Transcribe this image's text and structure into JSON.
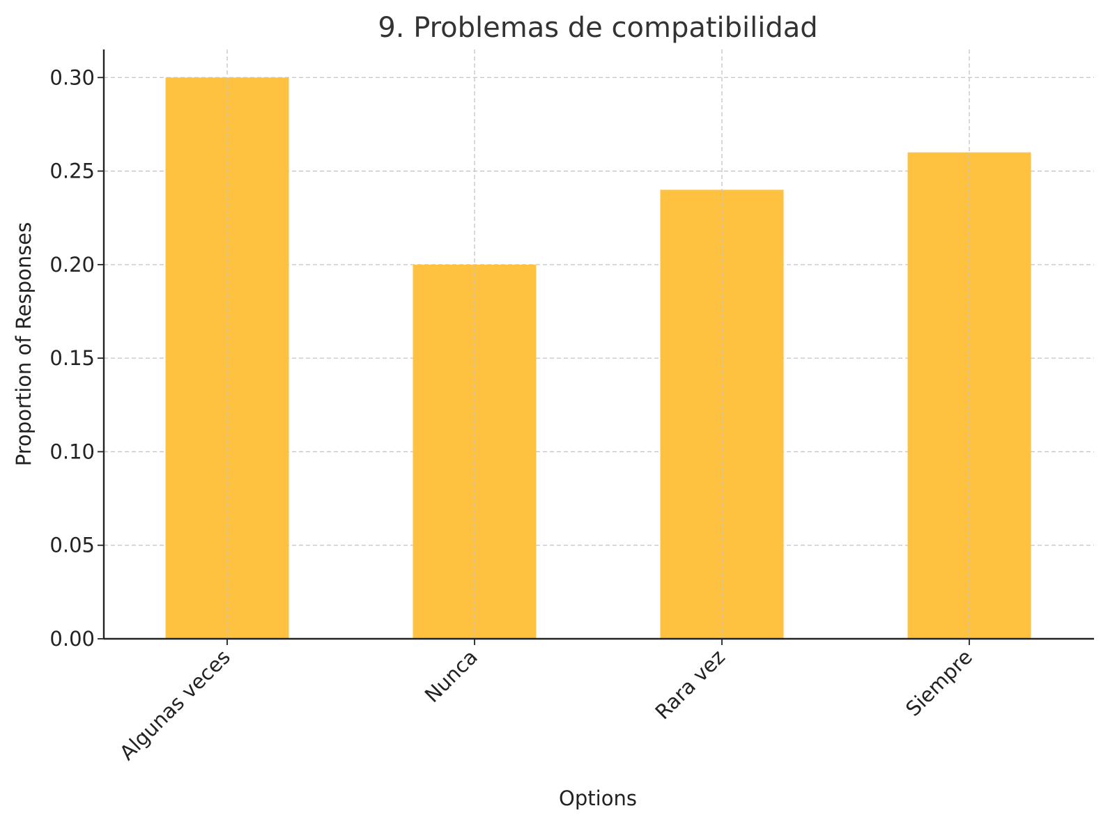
{
  "chart_data": {
    "type": "bar",
    "title": "9. Problemas de compatibilidad",
    "xlabel": "Options",
    "ylabel": "Proportion of Responses",
    "categories": [
      "Algunas veces",
      "Nunca",
      "Rara vez",
      "Siempre"
    ],
    "values": [
      0.3,
      0.2,
      0.24,
      0.26
    ],
    "ylim": [
      0,
      0.315
    ],
    "yticks": [
      "0.00",
      "0.05",
      "0.10",
      "0.15",
      "0.20",
      "0.25",
      "0.30"
    ],
    "grid": true,
    "bar_color": "#FFC240"
  }
}
